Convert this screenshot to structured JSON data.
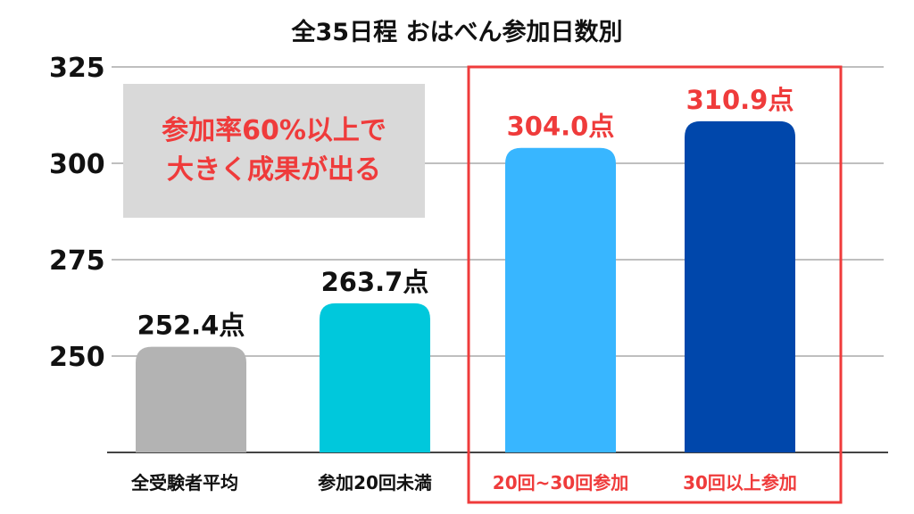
{
  "chart_data": {
    "type": "bar",
    "title": "全35日程 おはべん参加日数別",
    "xlabel": "",
    "ylabel": "",
    "categories": [
      "全受験者平均",
      "参加20回未満",
      "20回~30回参加",
      "30回以上参加"
    ],
    "values": [
      252.4,
      263.7,
      304.0,
      310.9
    ],
    "data_labels": [
      "252.4点",
      "263.7点",
      "304.0点",
      "310.9点"
    ],
    "bar_colors": [
      "#b3b3b3",
      "#00c8dc",
      "#38b6ff",
      "#0047ab"
    ],
    "label_colors": [
      "#111111",
      "#111111",
      "#ef3b3b",
      "#ef3b3b"
    ],
    "yticks": [
      250,
      275,
      300,
      325
    ],
    "ylim": [
      225,
      325
    ],
    "grid": true,
    "legend": "none",
    "highlight": {
      "categories": [
        "20回~30回参加",
        "30回以上参加"
      ],
      "color": "#ef3b3b"
    },
    "annotation": {
      "lines": [
        "参加率60%以上で",
        "大きく成果が出る"
      ],
      "text_color": "#ef3b3b",
      "box_color": "#d9d9d9"
    }
  }
}
